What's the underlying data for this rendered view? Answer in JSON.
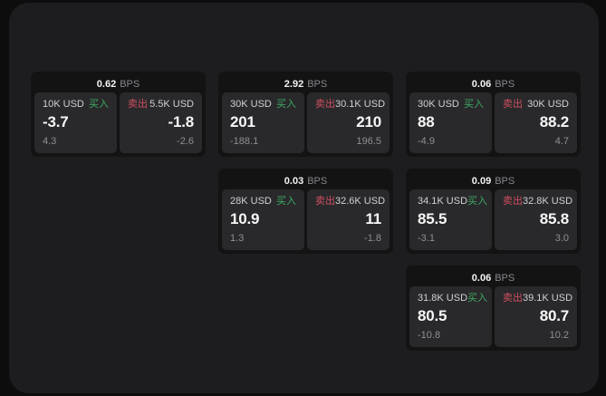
{
  "labels": {
    "bps": "BPS",
    "buy": "买入",
    "sell": "卖出"
  },
  "colors": {
    "buy_green": "#3fa963",
    "sell_red": "#d04f5f",
    "background": "#0d0d0e",
    "panel": "#1d1d1f",
    "card": "#131314",
    "tile": "#29292b"
  },
  "cards": [
    {
      "bps": "0.62",
      "buy": {
        "amount": "10K USD",
        "value": "-3.7",
        "sub": "4.3"
      },
      "sell": {
        "amount": "5.5K USD",
        "value": "-1.8",
        "sub": "-2.6"
      }
    },
    {
      "bps": "2.92",
      "buy": {
        "amount": "30K USD",
        "value": "201",
        "sub": "-188.1"
      },
      "sell": {
        "amount": "30.1K USD",
        "value": "210",
        "sub": "196.5"
      }
    },
    {
      "bps": "0.06",
      "buy": {
        "amount": "30K USD",
        "value": "88",
        "sub": "-4.9"
      },
      "sell": {
        "amount": "30K USD",
        "value": "88.2",
        "sub": "4.7"
      }
    },
    {
      "bps": "0.03",
      "buy": {
        "amount": "28K USD",
        "value": "10.9",
        "sub": "1.3"
      },
      "sell": {
        "amount": "32.6K USD",
        "value": "11",
        "sub": "-1.8"
      }
    },
    {
      "bps": "0.09",
      "buy": {
        "amount": "34.1K USD",
        "value": "85.5",
        "sub": "-3.1"
      },
      "sell": {
        "amount": "32.8K USD",
        "value": "85.8",
        "sub": "3.0"
      }
    },
    {
      "bps": "0.06",
      "buy": {
        "amount": "31.8K USD",
        "value": "80.5",
        "sub": "-10.8"
      },
      "sell": {
        "amount": "39.1K USD",
        "value": "80.7",
        "sub": "10.2"
      }
    }
  ]
}
